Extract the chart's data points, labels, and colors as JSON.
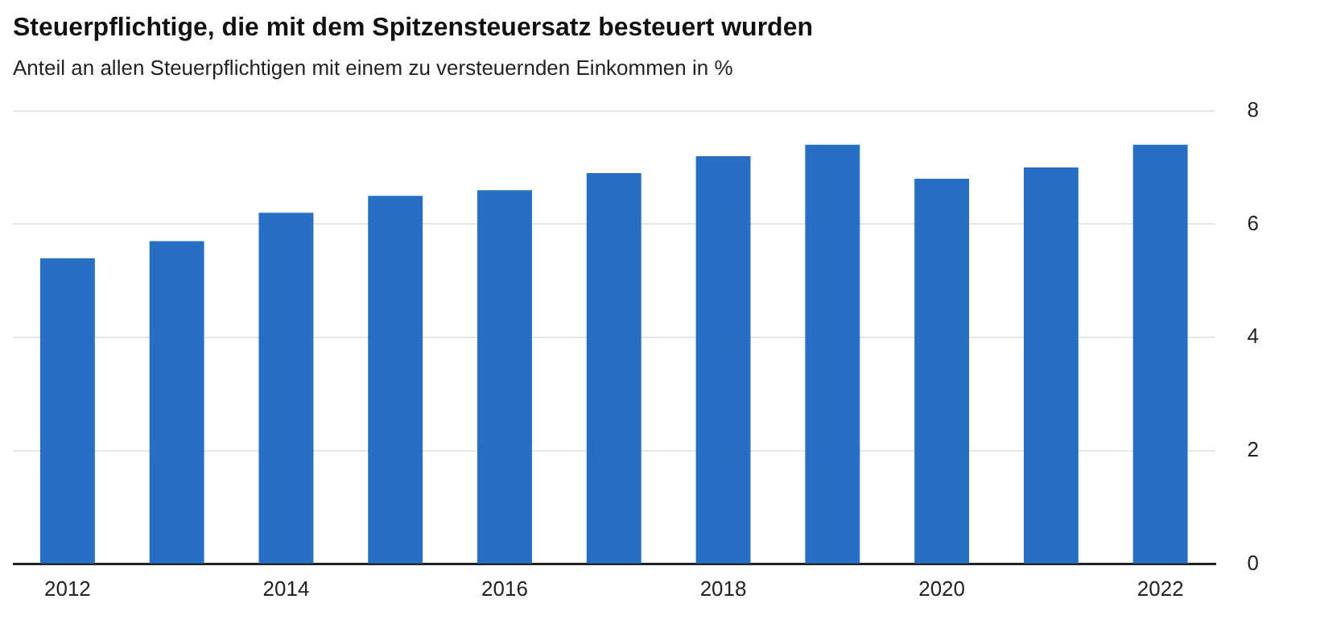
{
  "chart_data": {
    "type": "bar",
    "title": "Steuerpflichtige, die mit dem Spitzensteuersatz besteuert wurden",
    "subtitle": "Anteil an allen Steuerpflichtigen mit einem zu versteuernden Einkommen in %",
    "categories": [
      "2012",
      null,
      "2014",
      null,
      "2016",
      null,
      "2018",
      null,
      "2020",
      null,
      "2022"
    ],
    "values": [
      5.4,
      5.7,
      6.2,
      6.5,
      6.6,
      6.9,
      7.2,
      7.4,
      6.8,
      7.0,
      7.4
    ],
    "color": "#266fc4",
    "ylim": [
      0,
      8
    ],
    "yticks": [
      0,
      2,
      4,
      6,
      8
    ],
    "grid": "y"
  }
}
